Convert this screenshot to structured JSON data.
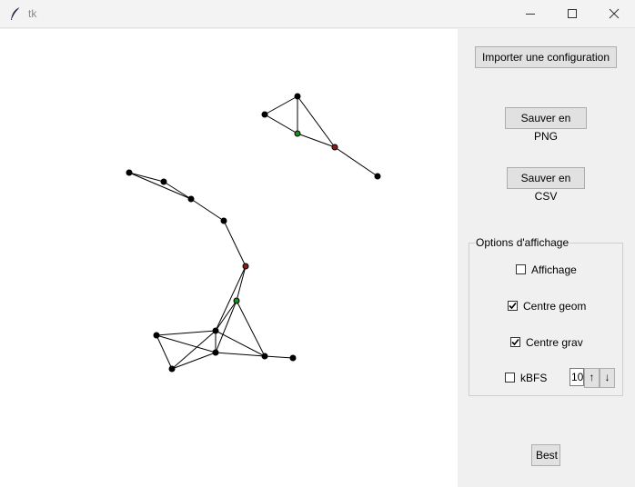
{
  "window": {
    "title": "tk",
    "icons": {
      "app": "feather-icon",
      "minimize": "minimize-icon",
      "maximize": "maximize-icon",
      "close": "close-icon"
    }
  },
  "sidebar": {
    "import_label": "Importer une configuration",
    "save_png_label": "Sauver en PNG",
    "save_csv_label": "Sauver en CSV",
    "options": {
      "title": "Options d'affichage",
      "affichage": {
        "label": "Affichage",
        "checked": false
      },
      "centre_geom": {
        "label": "Centre geom",
        "checked": true
      },
      "centre_grav": {
        "label": "Centre grav",
        "checked": true
      },
      "kbfs": {
        "label": "kBFS",
        "checked": false,
        "value": "10",
        "up_label": "↑",
        "down_label": "↓"
      }
    },
    "best_label": "Best"
  },
  "colors": {
    "node": "#000000",
    "centre_geom": "#1a8f1a",
    "centre_grav": "#8b1a1a",
    "edge": "#000000"
  }
}
